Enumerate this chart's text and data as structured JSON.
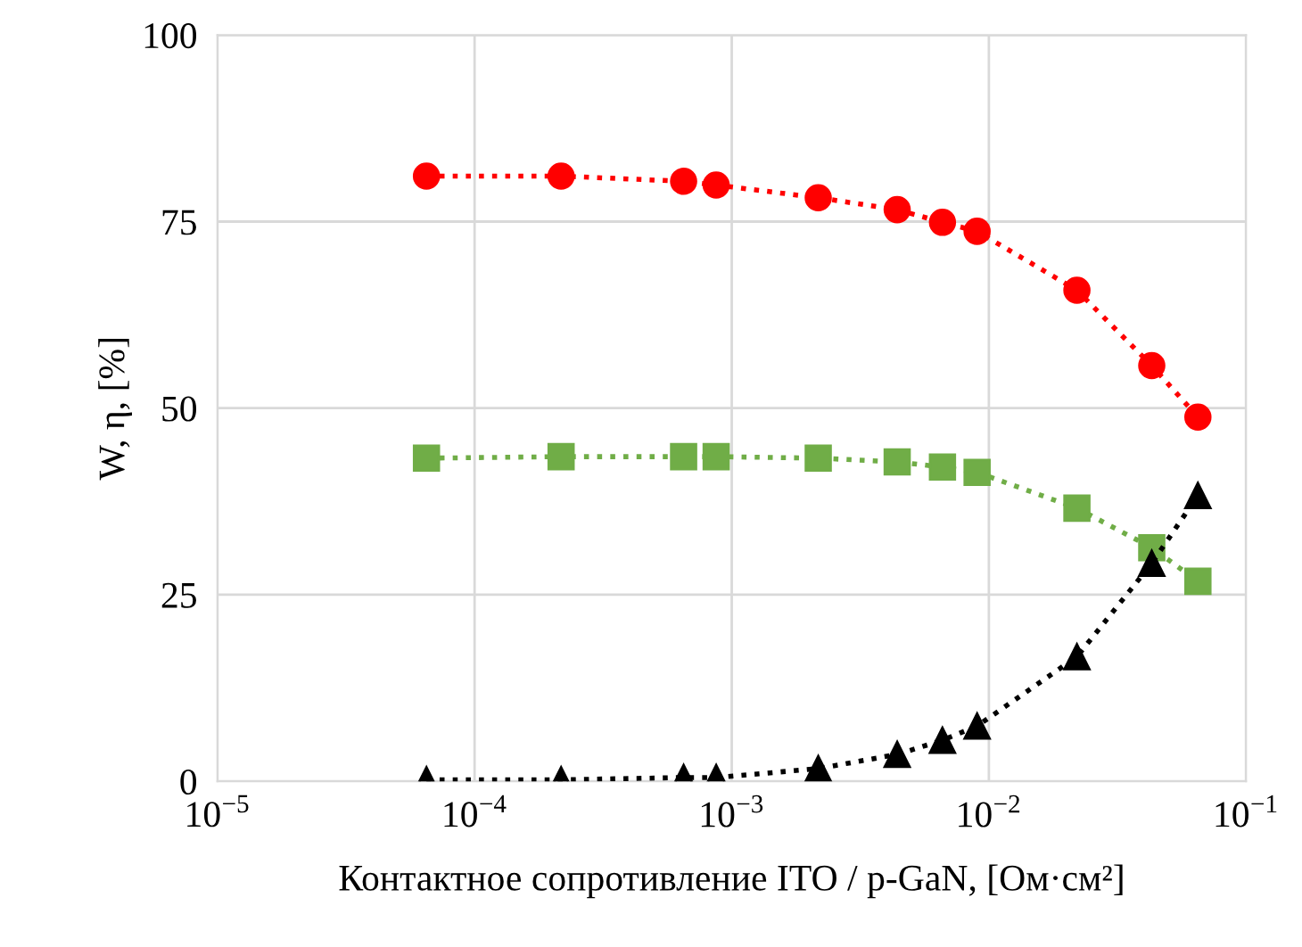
{
  "chart_data": {
    "type": "line",
    "xlabel": "Контактное сопротивление ITO / p-GaN, [Ом·см²]",
    "ylabel": "W, η, [%]",
    "x": [
      6.5e-05,
      0.000217,
      0.00065,
      0.00087,
      0.00217,
      0.0044,
      0.0066,
      0.009,
      0.022,
      0.043,
      0.065
    ],
    "series": [
      {
        "color": "#ff0000",
        "marker": "circle",
        "values": [
          81.1,
          81.1,
          80.4,
          79.9,
          78.2,
          76.6,
          74.9,
          73.7,
          65.8,
          55.7,
          48.8
        ]
      },
      {
        "color": "#70ad47",
        "marker": "square",
        "values": [
          43.3,
          43.5,
          43.5,
          43.5,
          43.3,
          42.8,
          42.1,
          41.4,
          36.6,
          31.3,
          26.8
        ]
      },
      {
        "color": "#000000",
        "marker": "triangle",
        "values": [
          0.2,
          0.2,
          0.5,
          0.5,
          1.7,
          3.6,
          5.5,
          7.4,
          16.7,
          29.2,
          38.3
        ]
      }
    ],
    "log": "x",
    "line_style": "dotted",
    "grid": true,
    "xlim": [
      1e-05,
      0.1
    ],
    "xticks": [
      {
        "value": 1e-05,
        "label": "10$^{−5}$"
      },
      {
        "value": 0.0001,
        "label": "10$^{−4}$"
      },
      {
        "value": 0.001,
        "label": "10$^{−3}$"
      },
      {
        "value": 0.01,
        "label": "10$^{−2}$"
      },
      {
        "value": 0.1,
        "label": "10$^{−1}$"
      }
    ],
    "ylim": [
      0,
      100
    ],
    "yticks": [
      0,
      25,
      50,
      75,
      100
    ]
  }
}
